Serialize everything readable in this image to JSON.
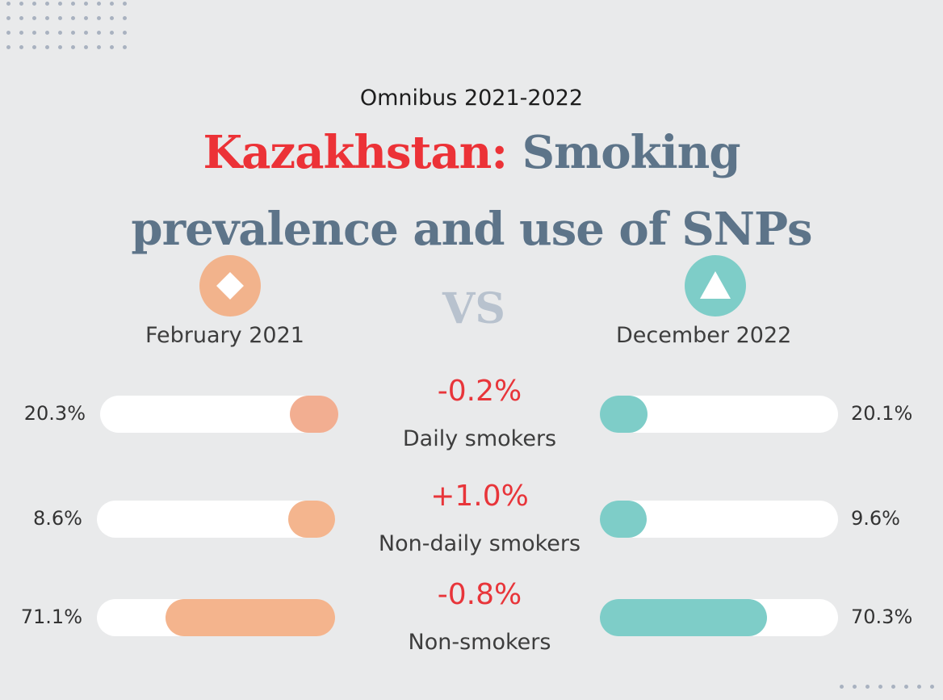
{
  "header": {
    "subtitle": "Omnibus 2021-2022",
    "title_accent": "Kazakhstan:",
    "title_line1": "Smoking",
    "title_line2": "prevalence and use of SNPs"
  },
  "periods": {
    "left": {
      "label": "February 2021",
      "color": "#f2b38c",
      "icon": "diamond-icon"
    },
    "vs": "VS",
    "right": {
      "label": "December 2022",
      "color": "#7ecdc8",
      "icon": "triangle-icon"
    }
  },
  "chart_data": {
    "type": "bar",
    "categories": [
      "Daily smokers",
      "Non-daily smokers",
      "Non-smokers"
    ],
    "series": [
      {
        "name": "February 2021",
        "values": [
          20.3,
          8.6,
          71.1
        ],
        "labels": [
          "20.3%",
          "8.6%",
          "71.1%"
        ]
      },
      {
        "name": "December 2022",
        "values": [
          20.1,
          9.6,
          70.3
        ],
        "labels": [
          "20.1%",
          "9.6%",
          "70.3%"
        ]
      }
    ],
    "changes": [
      "-0.2%",
      "+1.0%",
      "-0.8%"
    ],
    "ylim": [
      0,
      100
    ],
    "colors": {
      "left": [
        "#f2ae91",
        "#f4b58e",
        "#f4b48d"
      ],
      "right": [
        "#7ecdc8",
        "#7ecdc8",
        "#7ecdc8"
      ]
    }
  }
}
